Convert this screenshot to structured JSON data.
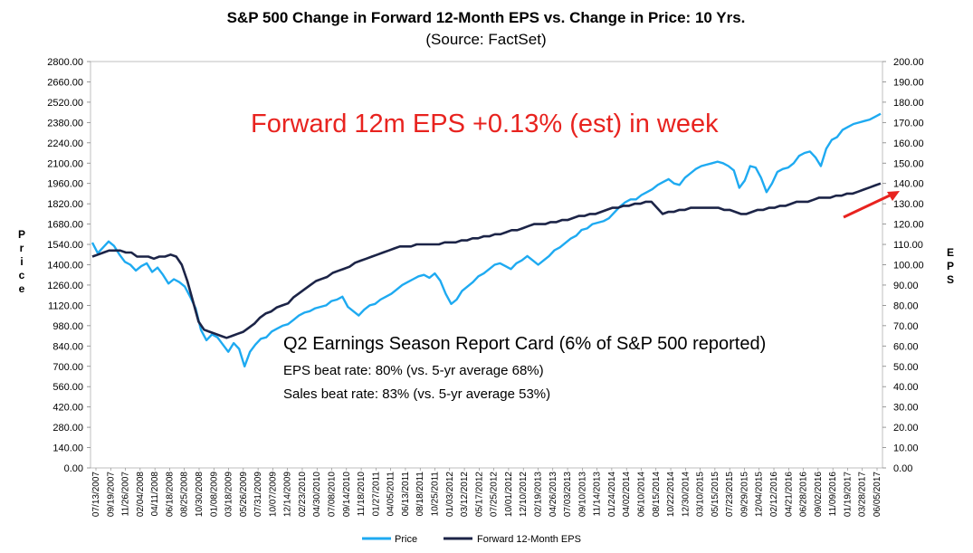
{
  "colors": {
    "price": "#1eaaf1",
    "eps": "#1c2447",
    "annotation": "#e8231f",
    "grid": "#d9d9d9"
  },
  "annotations": {
    "weekly_eps": "Forward 12m EPS +0.13% (est) in week",
    "report_card_title": "Q2 Earnings Season Report Card (6% of S&P 500 reported)",
    "eps_beat": "EPS beat rate: 80% (vs. 5-yr average 68%)",
    "sales_beat": "Sales beat rate: 83% (vs. 5-yr average 53%)"
  },
  "chart_data": {
    "type": "line",
    "title": "S&P 500 Change in Forward 12-Month EPS vs. Change in Price: 10 Yrs.",
    "subtitle": "(Source: FactSet)",
    "ylabel": "Price",
    "y2label": "EPS",
    "ylim": [
      0,
      2800
    ],
    "y2lim": [
      0,
      200
    ],
    "yticks": [
      "0.00",
      "140.00",
      "280.00",
      "420.00",
      "560.00",
      "700.00",
      "840.00",
      "980.00",
      "1120.00",
      "1260.00",
      "1400.00",
      "1540.00",
      "1680.00",
      "1820.00",
      "1960.00",
      "2100.00",
      "2240.00",
      "2380.00",
      "2520.00",
      "2660.00",
      "2800.00"
    ],
    "y2ticks": [
      "0.00",
      "10.00",
      "20.00",
      "30.00",
      "40.00",
      "50.00",
      "60.00",
      "70.00",
      "80.00",
      "90.00",
      "100.00",
      "110.00",
      "120.00",
      "130.00",
      "140.00",
      "150.00",
      "160.00",
      "170.00",
      "180.00",
      "190.00",
      "200.00"
    ],
    "x_tick_labels": [
      "07/13/2007",
      "09/19/2007",
      "11/26/2007",
      "02/04/2008",
      "04/11/2008",
      "06/18/2008",
      "08/25/2008",
      "10/30/2008",
      "01/08/2009",
      "03/18/2009",
      "05/26/2009",
      "07/31/2009",
      "10/07/2009",
      "12/14/2009",
      "02/23/2010",
      "04/30/2010",
      "07/08/2010",
      "09/14/2010",
      "11/18/2010",
      "01/27/2011",
      "04/05/2011",
      "06/13/2011",
      "08/18/2011",
      "10/25/2011",
      "01/03/2012",
      "03/12/2012",
      "05/17/2012",
      "07/25/2012",
      "10/01/2012",
      "12/10/2012",
      "02/19/2013",
      "04/26/2013",
      "07/03/2013",
      "09/10/2013",
      "11/14/2013",
      "01/24/2014",
      "04/02/2014",
      "06/10/2014",
      "08/15/2014",
      "10/22/2014",
      "12/30/2014",
      "03/10/2015",
      "05/15/2015",
      "07/23/2015",
      "09/29/2015",
      "12/04/2015",
      "02/12/2016",
      "04/21/2016",
      "06/28/2016",
      "09/02/2016",
      "11/09/2016",
      "01/19/2017",
      "03/28/2017",
      "06/05/2017"
    ],
    "series": [
      {
        "name": "Price",
        "axis": "left",
        "values": [
          1552,
          1480,
          1520,
          1560,
          1530,
          1470,
          1420,
          1400,
          1360,
          1390,
          1410,
          1350,
          1380,
          1330,
          1270,
          1300,
          1280,
          1250,
          1180,
          1100,
          950,
          880,
          920,
          900,
          850,
          800,
          860,
          820,
          700,
          800,
          850,
          890,
          900,
          940,
          960,
          980,
          990,
          1020,
          1050,
          1070,
          1080,
          1100,
          1110,
          1120,
          1150,
          1160,
          1180,
          1110,
          1080,
          1050,
          1090,
          1120,
          1130,
          1160,
          1180,
          1200,
          1230,
          1260,
          1280,
          1300,
          1320,
          1330,
          1310,
          1340,
          1290,
          1200,
          1130,
          1160,
          1220,
          1250,
          1280,
          1320,
          1340,
          1370,
          1400,
          1410,
          1390,
          1370,
          1410,
          1430,
          1460,
          1430,
          1400,
          1430,
          1460,
          1500,
          1520,
          1550,
          1580,
          1600,
          1640,
          1650,
          1680,
          1690,
          1700,
          1720,
          1760,
          1800,
          1830,
          1850,
          1850,
          1880,
          1900,
          1920,
          1950,
          1970,
          1990,
          1960,
          1950,
          2000,
          2030,
          2060,
          2080,
          2090,
          2100,
          2110,
          2100,
          2080,
          2050,
          1930,
          1980,
          2080,
          2070,
          2000,
          1900,
          1960,
          2040,
          2060,
          2070,
          2100,
          2150,
          2170,
          2180,
          2140,
          2080,
          2200,
          2260,
          2280,
          2330,
          2350,
          2370,
          2380,
          2390,
          2400,
          2420,
          2440
        ]
      },
      {
        "name": "Forward 12-Month EPS",
        "axis": "right",
        "values": [
          104,
          105,
          106,
          107,
          107,
          107,
          106,
          106,
          104,
          104,
          104,
          103,
          104,
          104,
          105,
          104,
          100,
          92,
          82,
          72,
          68,
          67,
          66,
          65,
          64,
          65,
          66,
          67,
          69,
          71,
          74,
          76,
          77,
          79,
          80,
          81,
          84,
          86,
          88,
          90,
          92,
          93,
          94,
          96,
          97,
          98,
          99,
          101,
          102,
          103,
          104,
          105,
          106,
          107,
          108,
          109,
          109,
          109,
          110,
          110,
          110,
          110,
          110,
          111,
          111,
          111,
          112,
          112,
          113,
          113,
          114,
          114,
          115,
          115,
          116,
          117,
          117,
          118,
          119,
          120,
          120,
          120,
          121,
          121,
          122,
          122,
          123,
          124,
          124,
          125,
          125,
          126,
          127,
          128,
          128,
          129,
          129,
          130,
          130,
          131,
          131,
          128,
          125,
          126,
          126,
          127,
          127,
          128,
          128,
          128,
          128,
          128,
          128,
          127,
          127,
          126,
          125,
          125,
          126,
          127,
          127,
          128,
          128,
          129,
          129,
          130,
          131,
          131,
          131,
          132,
          133,
          133,
          133,
          134,
          134,
          135,
          135,
          136,
          137,
          138,
          139,
          140
        ]
      }
    ],
    "legend": [
      "Price",
      "Forward 12-Month EPS"
    ],
    "legend_position": "bottom-center",
    "grid": false
  }
}
